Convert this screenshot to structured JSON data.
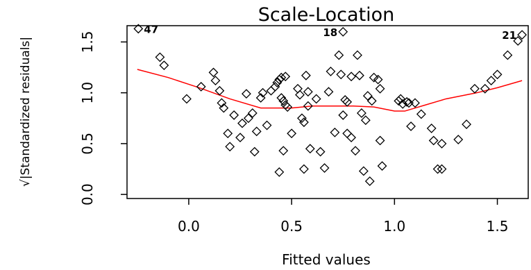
{
  "chart_data": {
    "type": "scatter",
    "title": "Scale-Location",
    "xlabel": "Fitted values",
    "ylabel": "√|Standardized residuals|",
    "xlim": [
      -0.3,
      1.65
    ],
    "ylim": [
      -0.04,
      1.66
    ],
    "xticks": [
      0.0,
      0.5,
      1.0,
      1.5
    ],
    "xtick_labels": [
      "0.0",
      "0.5",
      "1.0",
      "1.5"
    ],
    "yticks": [
      0.0,
      0.5,
      1.0,
      1.5
    ],
    "ytick_labels": [
      "0.0",
      "0.5",
      "1.0",
      "1.5"
    ],
    "points": [
      {
        "x": -0.245,
        "y": 1.63
      },
      {
        "x": 0.75,
        "y": 1.6
      },
      {
        "x": 1.62,
        "y": 1.57
      },
      {
        "x": 1.6,
        "y": 1.51
      },
      {
        "x": 1.55,
        "y": 1.37
      },
      {
        "x": -0.14,
        "y": 1.35
      },
      {
        "x": -0.12,
        "y": 1.27
      },
      {
        "x": -0.01,
        "y": 0.94
      },
      {
        "x": 0.06,
        "y": 1.06
      },
      {
        "x": 0.12,
        "y": 1.2
      },
      {
        "x": 0.13,
        "y": 1.12
      },
      {
        "x": 0.15,
        "y": 1.02
      },
      {
        "x": 0.16,
        "y": 0.9
      },
      {
        "x": 0.17,
        "y": 0.85
      },
      {
        "x": 0.19,
        "y": 0.6
      },
      {
        "x": 0.2,
        "y": 0.47
      },
      {
        "x": 0.22,
        "y": 0.78
      },
      {
        "x": 0.25,
        "y": 0.56
      },
      {
        "x": 0.26,
        "y": 0.7
      },
      {
        "x": 0.28,
        "y": 0.99
      },
      {
        "x": 0.29,
        "y": 0.75
      },
      {
        "x": 0.31,
        "y": 0.8
      },
      {
        "x": 0.32,
        "y": 0.42
      },
      {
        "x": 0.33,
        "y": 0.62
      },
      {
        "x": 0.35,
        "y": 0.95
      },
      {
        "x": 0.36,
        "y": 1.0
      },
      {
        "x": 0.38,
        "y": 0.68
      },
      {
        "x": 0.4,
        "y": 1.02
      },
      {
        "x": 0.42,
        "y": 1.06
      },
      {
        "x": 0.43,
        "y": 1.1
      },
      {
        "x": 0.44,
        "y": 1.13
      },
      {
        "x": 0.45,
        "y": 1.15
      },
      {
        "x": 0.47,
        "y": 1.16
      },
      {
        "x": 0.45,
        "y": 0.95
      },
      {
        "x": 0.46,
        "y": 0.92
      },
      {
        "x": 0.47,
        "y": 0.88
      },
      {
        "x": 0.48,
        "y": 0.86
      },
      {
        "x": 0.46,
        "y": 0.43
      },
      {
        "x": 0.44,
        "y": 0.22
      },
      {
        "x": 0.5,
        "y": 0.6
      },
      {
        "x": 0.53,
        "y": 1.04
      },
      {
        "x": 0.54,
        "y": 0.98
      },
      {
        "x": 0.55,
        "y": 0.75
      },
      {
        "x": 0.56,
        "y": 0.71
      },
      {
        "x": 0.56,
        "y": 0.25
      },
      {
        "x": 0.57,
        "y": 1.17
      },
      {
        "x": 0.58,
        "y": 1.01
      },
      {
        "x": 0.58,
        "y": 0.87
      },
      {
        "x": 0.59,
        "y": 0.45
      },
      {
        "x": 0.62,
        "y": 0.94
      },
      {
        "x": 0.64,
        "y": 0.42
      },
      {
        "x": 0.66,
        "y": 0.26
      },
      {
        "x": 0.68,
        "y": 1.01
      },
      {
        "x": 0.69,
        "y": 1.21
      },
      {
        "x": 0.71,
        "y": 0.61
      },
      {
        "x": 0.73,
        "y": 1.37
      },
      {
        "x": 0.74,
        "y": 1.18
      },
      {
        "x": 0.75,
        "y": 0.78
      },
      {
        "x": 0.76,
        "y": 0.93
      },
      {
        "x": 0.77,
        "y": 0.91
      },
      {
        "x": 0.77,
        "y": 0.6
      },
      {
        "x": 0.79,
        "y": 0.56
      },
      {
        "x": 0.79,
        "y": 1.16
      },
      {
        "x": 0.81,
        "y": 0.43
      },
      {
        "x": 0.82,
        "y": 1.37
      },
      {
        "x": 0.83,
        "y": 1.17
      },
      {
        "x": 0.84,
        "y": 0.8
      },
      {
        "x": 0.85,
        "y": 0.23
      },
      {
        "x": 0.86,
        "y": 0.73
      },
      {
        "x": 0.87,
        "y": 0.97
      },
      {
        "x": 0.88,
        "y": 0.13
      },
      {
        "x": 0.89,
        "y": 0.92
      },
      {
        "x": 0.9,
        "y": 1.15
      },
      {
        "x": 0.92,
        "y": 1.13
      },
      {
        "x": 0.93,
        "y": 1.04
      },
      {
        "x": 0.93,
        "y": 0.53
      },
      {
        "x": 0.94,
        "y": 0.28
      },
      {
        "x": 1.02,
        "y": 0.92
      },
      {
        "x": 1.03,
        "y": 0.94
      },
      {
        "x": 1.04,
        "y": 0.89
      },
      {
        "x": 1.06,
        "y": 0.91
      },
      {
        "x": 1.07,
        "y": 0.9
      },
      {
        "x": 1.08,
        "y": 0.67
      },
      {
        "x": 1.1,
        "y": 0.9
      },
      {
        "x": 1.13,
        "y": 0.79
      },
      {
        "x": 1.18,
        "y": 0.65
      },
      {
        "x": 1.19,
        "y": 0.53
      },
      {
        "x": 1.21,
        "y": 0.25
      },
      {
        "x": 1.23,
        "y": 0.25
      },
      {
        "x": 1.23,
        "y": 0.5
      },
      {
        "x": 1.31,
        "y": 0.54
      },
      {
        "x": 1.35,
        "y": 0.69
      },
      {
        "x": 1.39,
        "y": 1.04
      },
      {
        "x": 1.44,
        "y": 1.04
      },
      {
        "x": 1.47,
        "y": 1.12
      },
      {
        "x": 1.5,
        "y": 1.18
      }
    ],
    "labeled_points": [
      {
        "index": 0,
        "label": "47"
      },
      {
        "index": 1,
        "label": "18"
      },
      {
        "index": 2,
        "label": "21"
      }
    ],
    "smooth_line": {
      "color": "#ff0000",
      "x": [
        -0.25,
        -0.1,
        0.05,
        0.2,
        0.35,
        0.5,
        0.6,
        0.7,
        0.8,
        0.9,
        1.0,
        1.05,
        1.15,
        1.25,
        1.4,
        1.5,
        1.62
      ],
      "y": [
        1.23,
        1.15,
        1.05,
        0.94,
        0.85,
        0.85,
        0.87,
        0.87,
        0.87,
        0.86,
        0.82,
        0.82,
        0.88,
        0.94,
        1.0,
        1.05,
        1.12
      ]
    },
    "grid": false,
    "point_marker": "diamond"
  }
}
